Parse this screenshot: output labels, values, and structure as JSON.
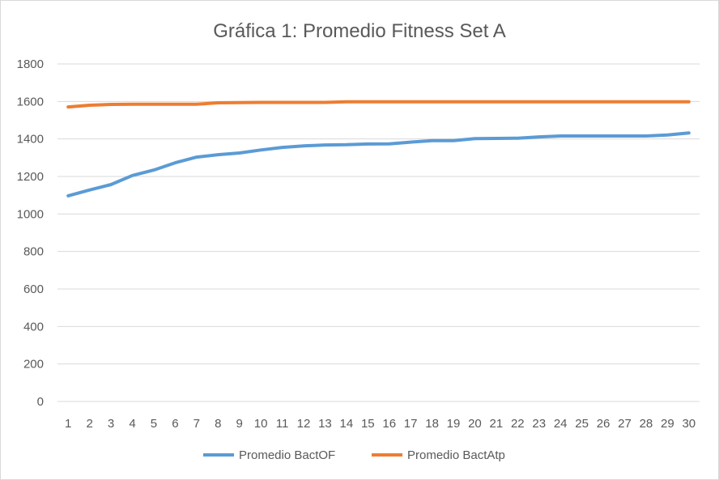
{
  "chart_data": {
    "type": "line",
    "title": "Gráfica 1: Promedio Fitness Set A",
    "xlabel": "",
    "ylabel": "",
    "x": [
      1,
      2,
      3,
      4,
      5,
      6,
      7,
      8,
      9,
      10,
      11,
      12,
      13,
      14,
      15,
      16,
      17,
      18,
      19,
      20,
      21,
      22,
      23,
      24,
      25,
      26,
      27,
      28,
      29,
      30
    ],
    "ylim": [
      0,
      1800
    ],
    "yticks": [
      0,
      200,
      400,
      600,
      800,
      1000,
      1200,
      1400,
      1600,
      1800
    ],
    "grid": true,
    "legend": "bottom",
    "series": [
      {
        "name": "Promedio BactOF",
        "color": "#5b9bd5",
        "values": [
          1097,
          1128,
          1157,
          1205,
          1234,
          1273,
          1303,
          1316,
          1325,
          1341,
          1355,
          1363,
          1368,
          1369,
          1373,
          1374,
          1383,
          1391,
          1391,
          1402,
          1403,
          1404,
          1411,
          1416,
          1416,
          1416,
          1416,
          1416,
          1421,
          1432
        ]
      },
      {
        "name": "Promedio BactAtp",
        "color": "#ed7d31",
        "values": [
          1571,
          1580,
          1584,
          1585,
          1585,
          1585,
          1585,
          1593,
          1594,
          1595,
          1595,
          1595,
          1595,
          1598,
          1598,
          1598,
          1598,
          1598,
          1598,
          1598,
          1598,
          1598,
          1598,
          1598,
          1598,
          1598,
          1598,
          1598,
          1598,
          1598
        ]
      }
    ]
  }
}
